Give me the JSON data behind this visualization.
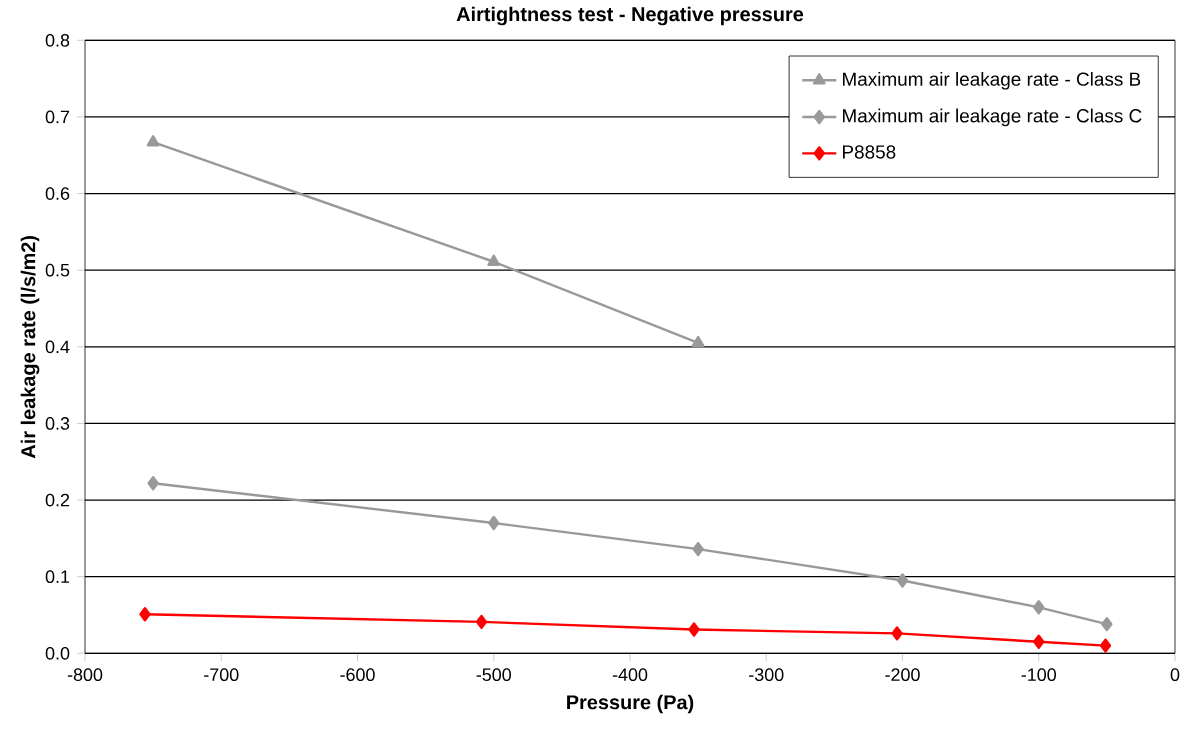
{
  "chart_data": {
    "type": "line",
    "title": "Airtightness test - Negative pressure",
    "xlabel": "Pressure (Pa)",
    "ylabel": "Air leakage rate (l/s/m2)",
    "xlim": [
      -800,
      0
    ],
    "xticks": [
      -800,
      -700,
      -600,
      -500,
      -400,
      -300,
      -200,
      -100,
      0
    ],
    "ylim": [
      0,
      0.8
    ],
    "yticks": [
      {
        "value": 0,
        "label": "0.0"
      },
      0.1,
      0.2,
      0.3,
      0.4,
      0.5,
      0.6,
      0.7,
      0.8
    ],
    "grid": "y",
    "legend": "top right",
    "series": [
      {
        "name": "Maximum air leakage rate - Class B",
        "color": "#999999",
        "marker": "triangle",
        "x": [
          -750,
          -500,
          -350
        ],
        "values": [
          0.667,
          0.511,
          0.405
        ]
      },
      {
        "name": "Maximum air leakage rate - Class C",
        "color": "#999999",
        "marker": "diamond",
        "x": [
          -750,
          -500,
          -350,
          -200,
          -100,
          -50
        ],
        "values": [
          0.222,
          0.17,
          0.136,
          0.095,
          0.06,
          0.038
        ]
      },
      {
        "name": "P8858",
        "color": "#ff0000",
        "marker": "diamond",
        "x": [
          -756,
          -509,
          -353,
          -204,
          -100,
          -51
        ],
        "values": [
          0.051,
          0.041,
          0.031,
          0.026,
          0.015,
          0.01
        ]
      }
    ]
  }
}
